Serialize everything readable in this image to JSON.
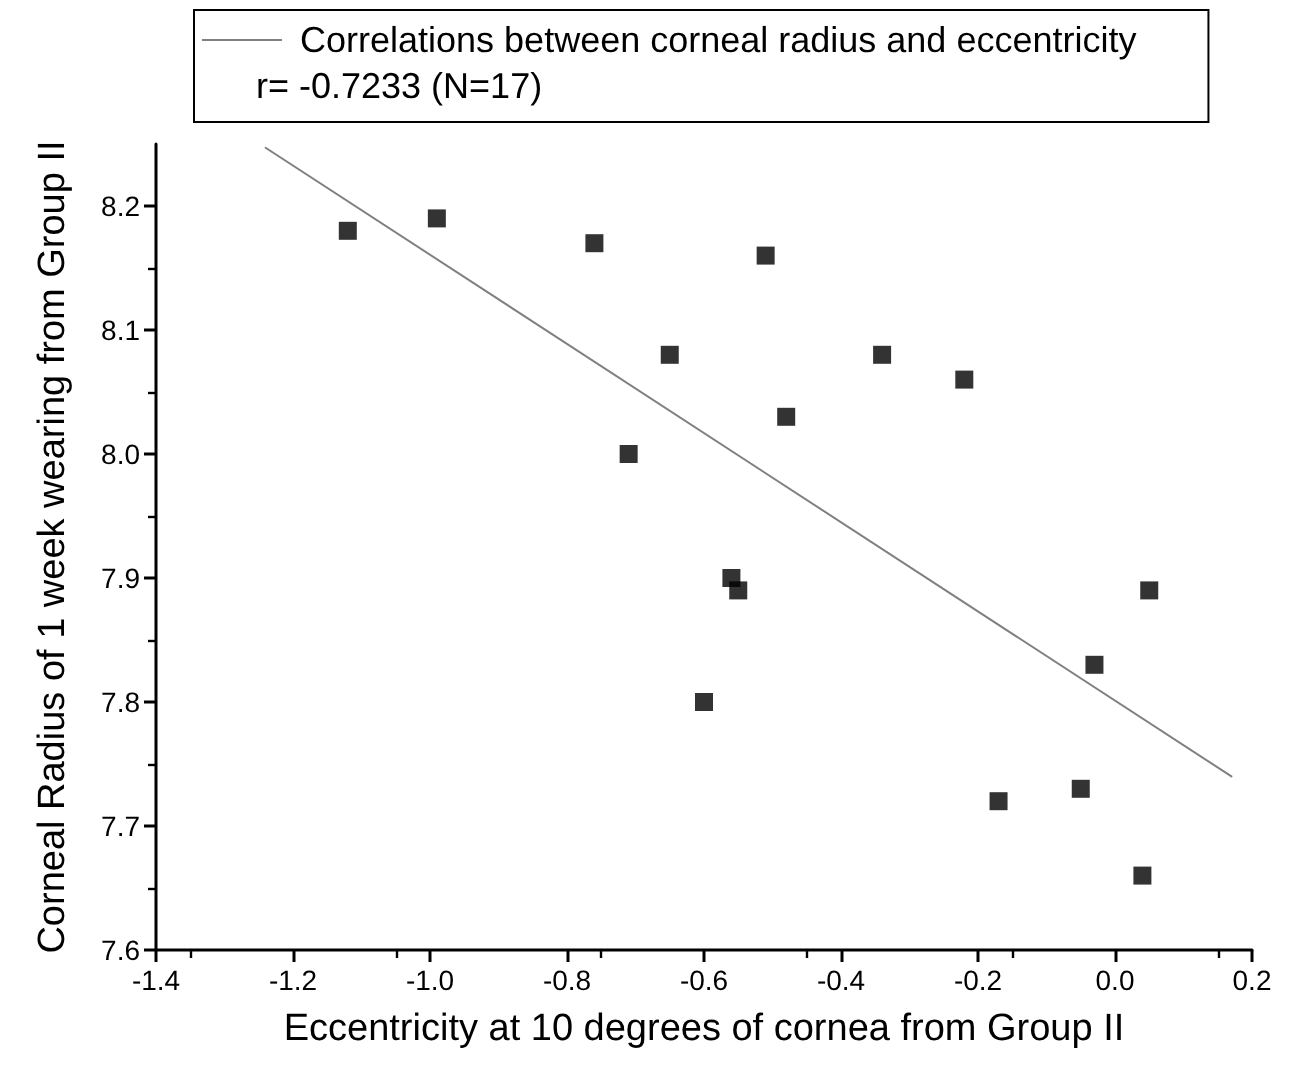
{
  "chart_data": {
    "type": "scatter",
    "xlabel": "Eccentricity at 10 degrees of cornea from Group II",
    "ylabel": "Corneal Radius of 1 week wearing from Group II",
    "annotations": [
      "r= -0.7233 (N=17)"
    ],
    "series": [
      {
        "color": "#000000",
        "marker": "square",
        "x": [
          -1.12,
          -0.99,
          -0.76,
          -0.51,
          -0.65,
          -0.34,
          -0.22,
          -0.48,
          -0.71,
          -0.56,
          -0.55,
          0.05,
          -0.03,
          -0.6,
          -0.17,
          -0.05,
          0.04
        ],
        "values": [
          8.18,
          8.19,
          8.17,
          8.16,
          8.08,
          8.08,
          8.06,
          8.03,
          8.0,
          7.9,
          7.89,
          7.89,
          7.83,
          7.8,
          7.72,
          7.73,
          7.66
        ]
      },
      {
        "type": "line",
        "name": "Correlations between corneal radius and eccentricity",
        "color": "#808080",
        "x": [
          -1.24,
          0.17
        ],
        "values": [
          8.247,
          7.74
        ]
      }
    ],
    "xlim": [
      -1.4,
      0.2
    ],
    "xticks": [
      -1.4,
      -1.2,
      {
        "value": -1,
        "label": "-1.0"
      },
      -0.8,
      -0.6,
      -0.4,
      -0.2,
      {
        "value": 0,
        "label": "0.0"
      },
      0.2
    ],
    "ylim": [
      7.6,
      8.25
    ],
    "yticks": [
      7.6,
      7.7,
      7.8,
      7.9,
      {
        "value": 8,
        "label": "8.0"
      },
      8.1,
      8.2
    ],
    "legend": "top"
  }
}
